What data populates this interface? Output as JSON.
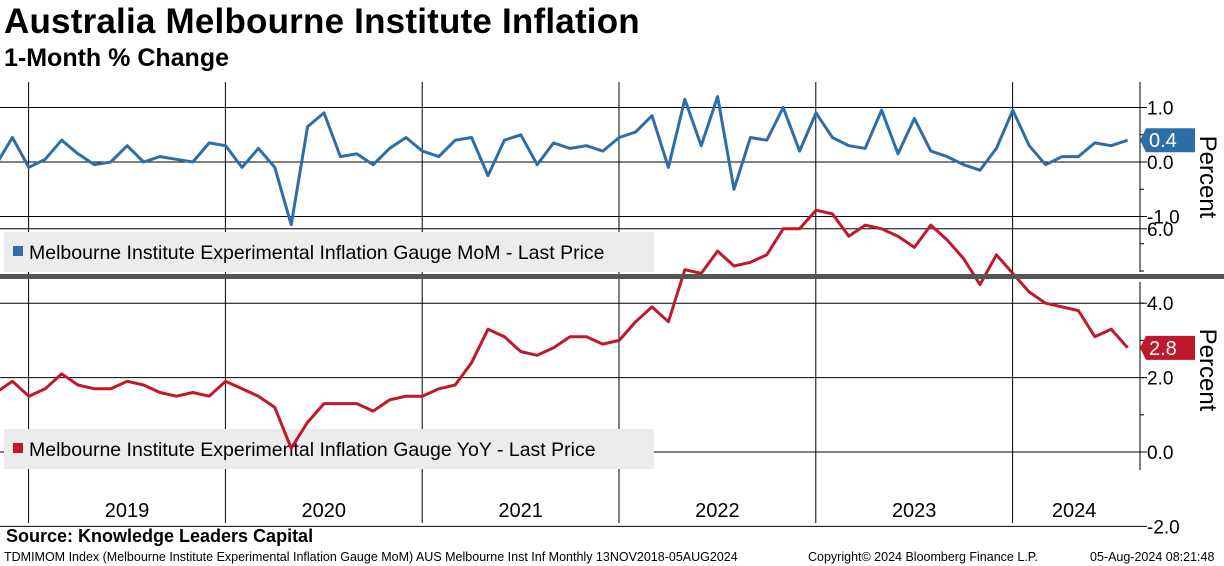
{
  "header": {
    "title": "Australia Melbourne Institute Inflation",
    "subtitle": "1-Month % Change"
  },
  "footer": {
    "source": "Source: Knowledge Leaders Capital",
    "ticker": "TDMIMOM Index (Melbourne Institute Experimental Inflation Gauge MoM) AUS Melbourne Inst Inf  Monthly 13NOV2018-05AUG2024",
    "copyright": "Copyright© 2024 Bloomberg Finance L.P.",
    "timestamp": "05-Aug-2024 08:21:48"
  },
  "colors": {
    "mom": "#2e6ea8",
    "yoy": "#c0182d"
  },
  "chart_data": [
    {
      "type": "line",
      "panel": "top",
      "ylabel": "Percent",
      "ylim": [
        -2.0,
        1.5
      ],
      "yticks": [
        1.0,
        0.0,
        -1.0
      ],
      "ytick_labels": [
        "1.0",
        "0.0",
        "-1.0"
      ],
      "grid": true,
      "legend": "bottom-left",
      "last_value_label": "0.4",
      "x_start": "2018-11",
      "series": [
        {
          "name": "Melbourne Institute Experimental Inflation Gauge MoM - Last Price",
          "values": [
            -0.05,
            0.45,
            -0.1,
            0.05,
            0.4,
            0.15,
            -0.05,
            0.0,
            0.3,
            0.0,
            0.1,
            0.05,
            0.0,
            0.35,
            0.3,
            -0.1,
            0.25,
            -0.1,
            -1.15,
            0.65,
            0.9,
            0.1,
            0.15,
            -0.05,
            0.25,
            0.45,
            0.2,
            0.1,
            0.4,
            0.45,
            -0.25,
            0.4,
            0.5,
            -0.05,
            0.35,
            0.25,
            0.3,
            0.2,
            0.45,
            0.55,
            0.85,
            -0.1,
            1.15,
            0.3,
            1.2,
            -0.5,
            0.45,
            0.4,
            1.0,
            0.2,
            0.9,
            0.45,
            0.3,
            0.25,
            0.95,
            0.15,
            0.8,
            0.2,
            0.1,
            -0.05,
            -0.15,
            0.25,
            0.95,
            0.3,
            -0.05,
            0.1,
            0.1,
            0.35,
            0.3,
            0.4
          ]
        }
      ]
    },
    {
      "type": "line",
      "panel": "bottom",
      "ylabel": "Percent",
      "ylim": [
        -2.5,
        7.0
      ],
      "yticks": [
        6.0,
        4.0,
        2.0,
        0.0,
        -2.0
      ],
      "ytick_labels": [
        "6.0",
        "4.0",
        "2.0",
        "0.0",
        "-2.0"
      ],
      "grid": true,
      "legend": "bottom-left",
      "last_value_label": "2.8",
      "x_start": "2018-11",
      "series": [
        {
          "name": "Melbourne Institute Experimental Inflation Gauge YoY - Last Price",
          "values": [
            1.6,
            1.9,
            1.5,
            1.7,
            2.1,
            1.8,
            1.7,
            1.7,
            1.9,
            1.8,
            1.6,
            1.5,
            1.6,
            1.5,
            1.9,
            1.7,
            1.5,
            1.2,
            0.1,
            0.8,
            1.3,
            1.3,
            1.3,
            1.1,
            1.4,
            1.5,
            1.5,
            1.7,
            1.8,
            2.4,
            3.3,
            3.1,
            2.7,
            2.6,
            2.8,
            3.1,
            3.1,
            2.9,
            3.0,
            3.5,
            3.9,
            3.5,
            4.9,
            4.8,
            5.4,
            5.0,
            5.1,
            5.3,
            6.0,
            6.0,
            6.5,
            6.4,
            5.8,
            6.1,
            6.0,
            5.8,
            5.5,
            6.1,
            5.7,
            5.2,
            4.5,
            5.3,
            4.8,
            4.3,
            4.0,
            3.9,
            3.8,
            3.1,
            3.3,
            2.8
          ]
        }
      ]
    }
  ],
  "x_axis": {
    "years": [
      "2019",
      "2020",
      "2021",
      "2022",
      "2023",
      "2024"
    ],
    "year_start_index": [
      2,
      14,
      26,
      38,
      50,
      62
    ]
  }
}
